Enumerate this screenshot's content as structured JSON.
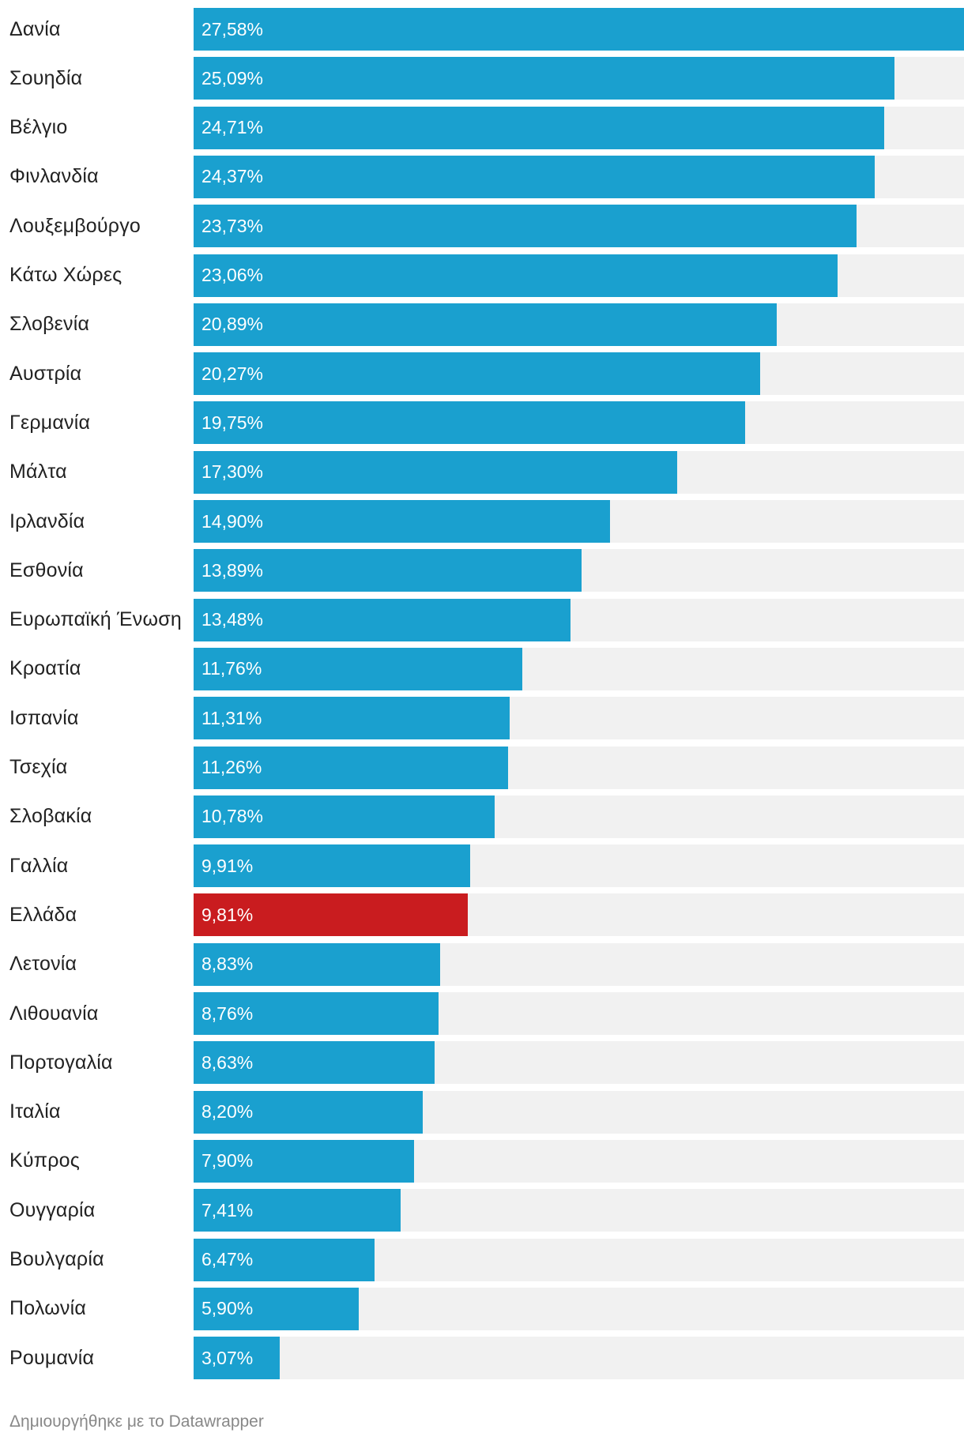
{
  "chart_data": {
    "type": "bar",
    "orientation": "horizontal",
    "categories": [
      "Δανία",
      "Σουηδία",
      "Βέλγιο",
      "Φινλανδία",
      "Λουξεμβούργο",
      "Κάτω Χώρες",
      "Σλοβενία",
      "Αυστρία",
      "Γερμανία",
      "Μάλτα",
      "Ιρλανδία",
      "Εσθονία",
      "Ευρωπαϊκή Ένωση",
      "Κροατία",
      "Ισπανία",
      "Τσεχία",
      "Σλοβακία",
      "Γαλλία",
      "Ελλάδα",
      "Λετονία",
      "Λιθουανία",
      "Πορτογαλία",
      "Ιταλία",
      "Κύπρος",
      "Ουγγαρία",
      "Βουλγαρία",
      "Πολωνία",
      "Ρουμανία"
    ],
    "values": [
      27.58,
      25.09,
      24.71,
      24.37,
      23.73,
      23.06,
      20.89,
      20.27,
      19.75,
      17.3,
      14.9,
      13.89,
      13.48,
      11.76,
      11.31,
      11.26,
      10.78,
      9.91,
      9.81,
      8.83,
      8.76,
      8.63,
      8.2,
      7.9,
      7.41,
      6.47,
      5.9,
      3.07
    ],
    "value_labels": [
      "27,58%",
      "25,09%",
      "24,71%",
      "24,37%",
      "23,73%",
      "23,06%",
      "20,89%",
      "20,27%",
      "19,75%",
      "17,30%",
      "14,90%",
      "13,89%",
      "13,48%",
      "11,76%",
      "11,31%",
      "11,26%",
      "10,78%",
      "9,91%",
      "9,81%",
      "8,83%",
      "8,76%",
      "8,63%",
      "8,20%",
      "7,90%",
      "7,41%",
      "6,47%",
      "5,90%",
      "3,07%"
    ],
    "highlight_category": "Ελλάδα",
    "xlim": [
      0,
      27.58
    ],
    "unit": "%",
    "grid": false,
    "colors": {
      "bar": "#1aa0cf",
      "highlight": "#c91c1f",
      "track": "#f1f1f1",
      "value_text": "#ffffff",
      "label_text": "#222222"
    }
  },
  "footer": {
    "credit": "Δημιουργήθηκε με το Datawrapper"
  }
}
